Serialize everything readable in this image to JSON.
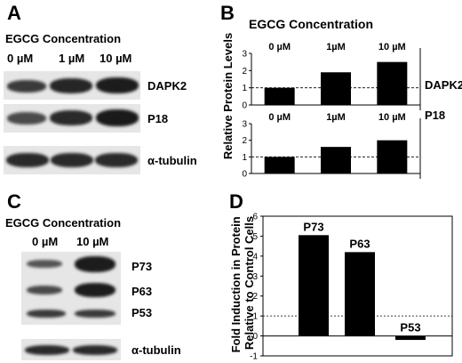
{
  "panels": {
    "A": "A",
    "B": "B",
    "C": "C",
    "D": "D"
  },
  "panel_a": {
    "title": "EGCG Concentration",
    "lanes": [
      "0 µM",
      "1 µM",
      "10 µM"
    ],
    "rows": [
      "DAPK2",
      "P18",
      "α-tubulin"
    ]
  },
  "panel_c": {
    "title": "EGCG Concentration",
    "lanes": [
      "0 µM",
      "10 µM"
    ],
    "rows": [
      "P73",
      "P63",
      "P53",
      "α-tubulin"
    ]
  },
  "chart_data": [
    {
      "type": "bar",
      "panel": "B",
      "title": "EGCG Concentration",
      "ylabel": "Relative Protein Levels",
      "series": [
        {
          "name": "DAPK2",
          "categories": [
            "0 µM",
            "1µM",
            "10 µM"
          ],
          "values": [
            1.0,
            1.9,
            2.5
          ],
          "ylim": [
            0,
            3
          ],
          "yticks": [
            0,
            1,
            2,
            3
          ],
          "reference_line": 1
        }
      ]
    },
    {
      "type": "bar",
      "panel": "B",
      "series": [
        {
          "name": "P18",
          "categories": [
            "0 µM",
            "1µM",
            "10 µM"
          ],
          "values": [
            1.0,
            1.6,
            2.0
          ],
          "ylim": [
            0,
            3
          ],
          "yticks": [
            0,
            1,
            2,
            3
          ],
          "reference_line": 1
        }
      ]
    },
    {
      "type": "bar",
      "panel": "D",
      "ylabel": "Fold Induction in Protein Relative to Control Cells",
      "categories": [
        "P73",
        "P63",
        "P53"
      ],
      "values": [
        5.05,
        4.2,
        -0.2
      ],
      "ylim": [
        -1,
        6
      ],
      "yticks": [
        -1,
        0,
        1,
        2,
        3,
        4,
        5,
        6
      ],
      "reference_line": 1
    }
  ]
}
